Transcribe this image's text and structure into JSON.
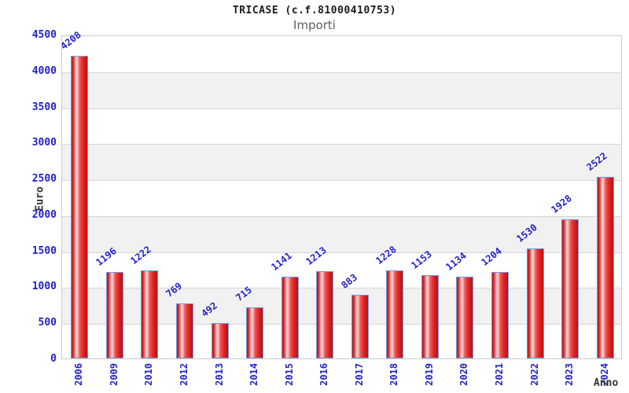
{
  "chart_data": {
    "type": "bar",
    "title": "TRICASE (c.f.81000410753)",
    "subtitle": "Importi",
    "xlabel": "Anno",
    "ylabel": "Euro",
    "categories": [
      "2006",
      "2009",
      "2010",
      "2012",
      "2013",
      "2014",
      "2015",
      "2016",
      "2017",
      "2018",
      "2019",
      "2020",
      "2021",
      "2022",
      "2023",
      "2024"
    ],
    "values": [
      4208,
      1196,
      1222,
      769,
      492,
      715,
      1141,
      1213,
      883,
      1228,
      1153,
      1134,
      1204,
      1530,
      1928,
      2522
    ],
    "ylim": [
      0,
      4500
    ],
    "ytick_step": 500,
    "yticks": [
      0,
      500,
      1000,
      1500,
      2000,
      2500,
      3000,
      3500,
      4000,
      4500
    ],
    "grid": "horizontal gridlines every 500 with alternating white/gray bands",
    "legend": "none",
    "colors": {
      "bar_red": "#d92020",
      "bar_highlight": "#fbd9d9",
      "bar_border_blue": "#6f9ce8",
      "label_blue": "#2222cc",
      "band_gray": "#f1f1f1",
      "gridline": "#d6d6d6",
      "plot_border": "#cccccc",
      "title_color": "#1a1a1a",
      "subtitle_gray": "#5f5f5f",
      "axis_label_dark": "#333333",
      "background": "#ffffff"
    }
  }
}
